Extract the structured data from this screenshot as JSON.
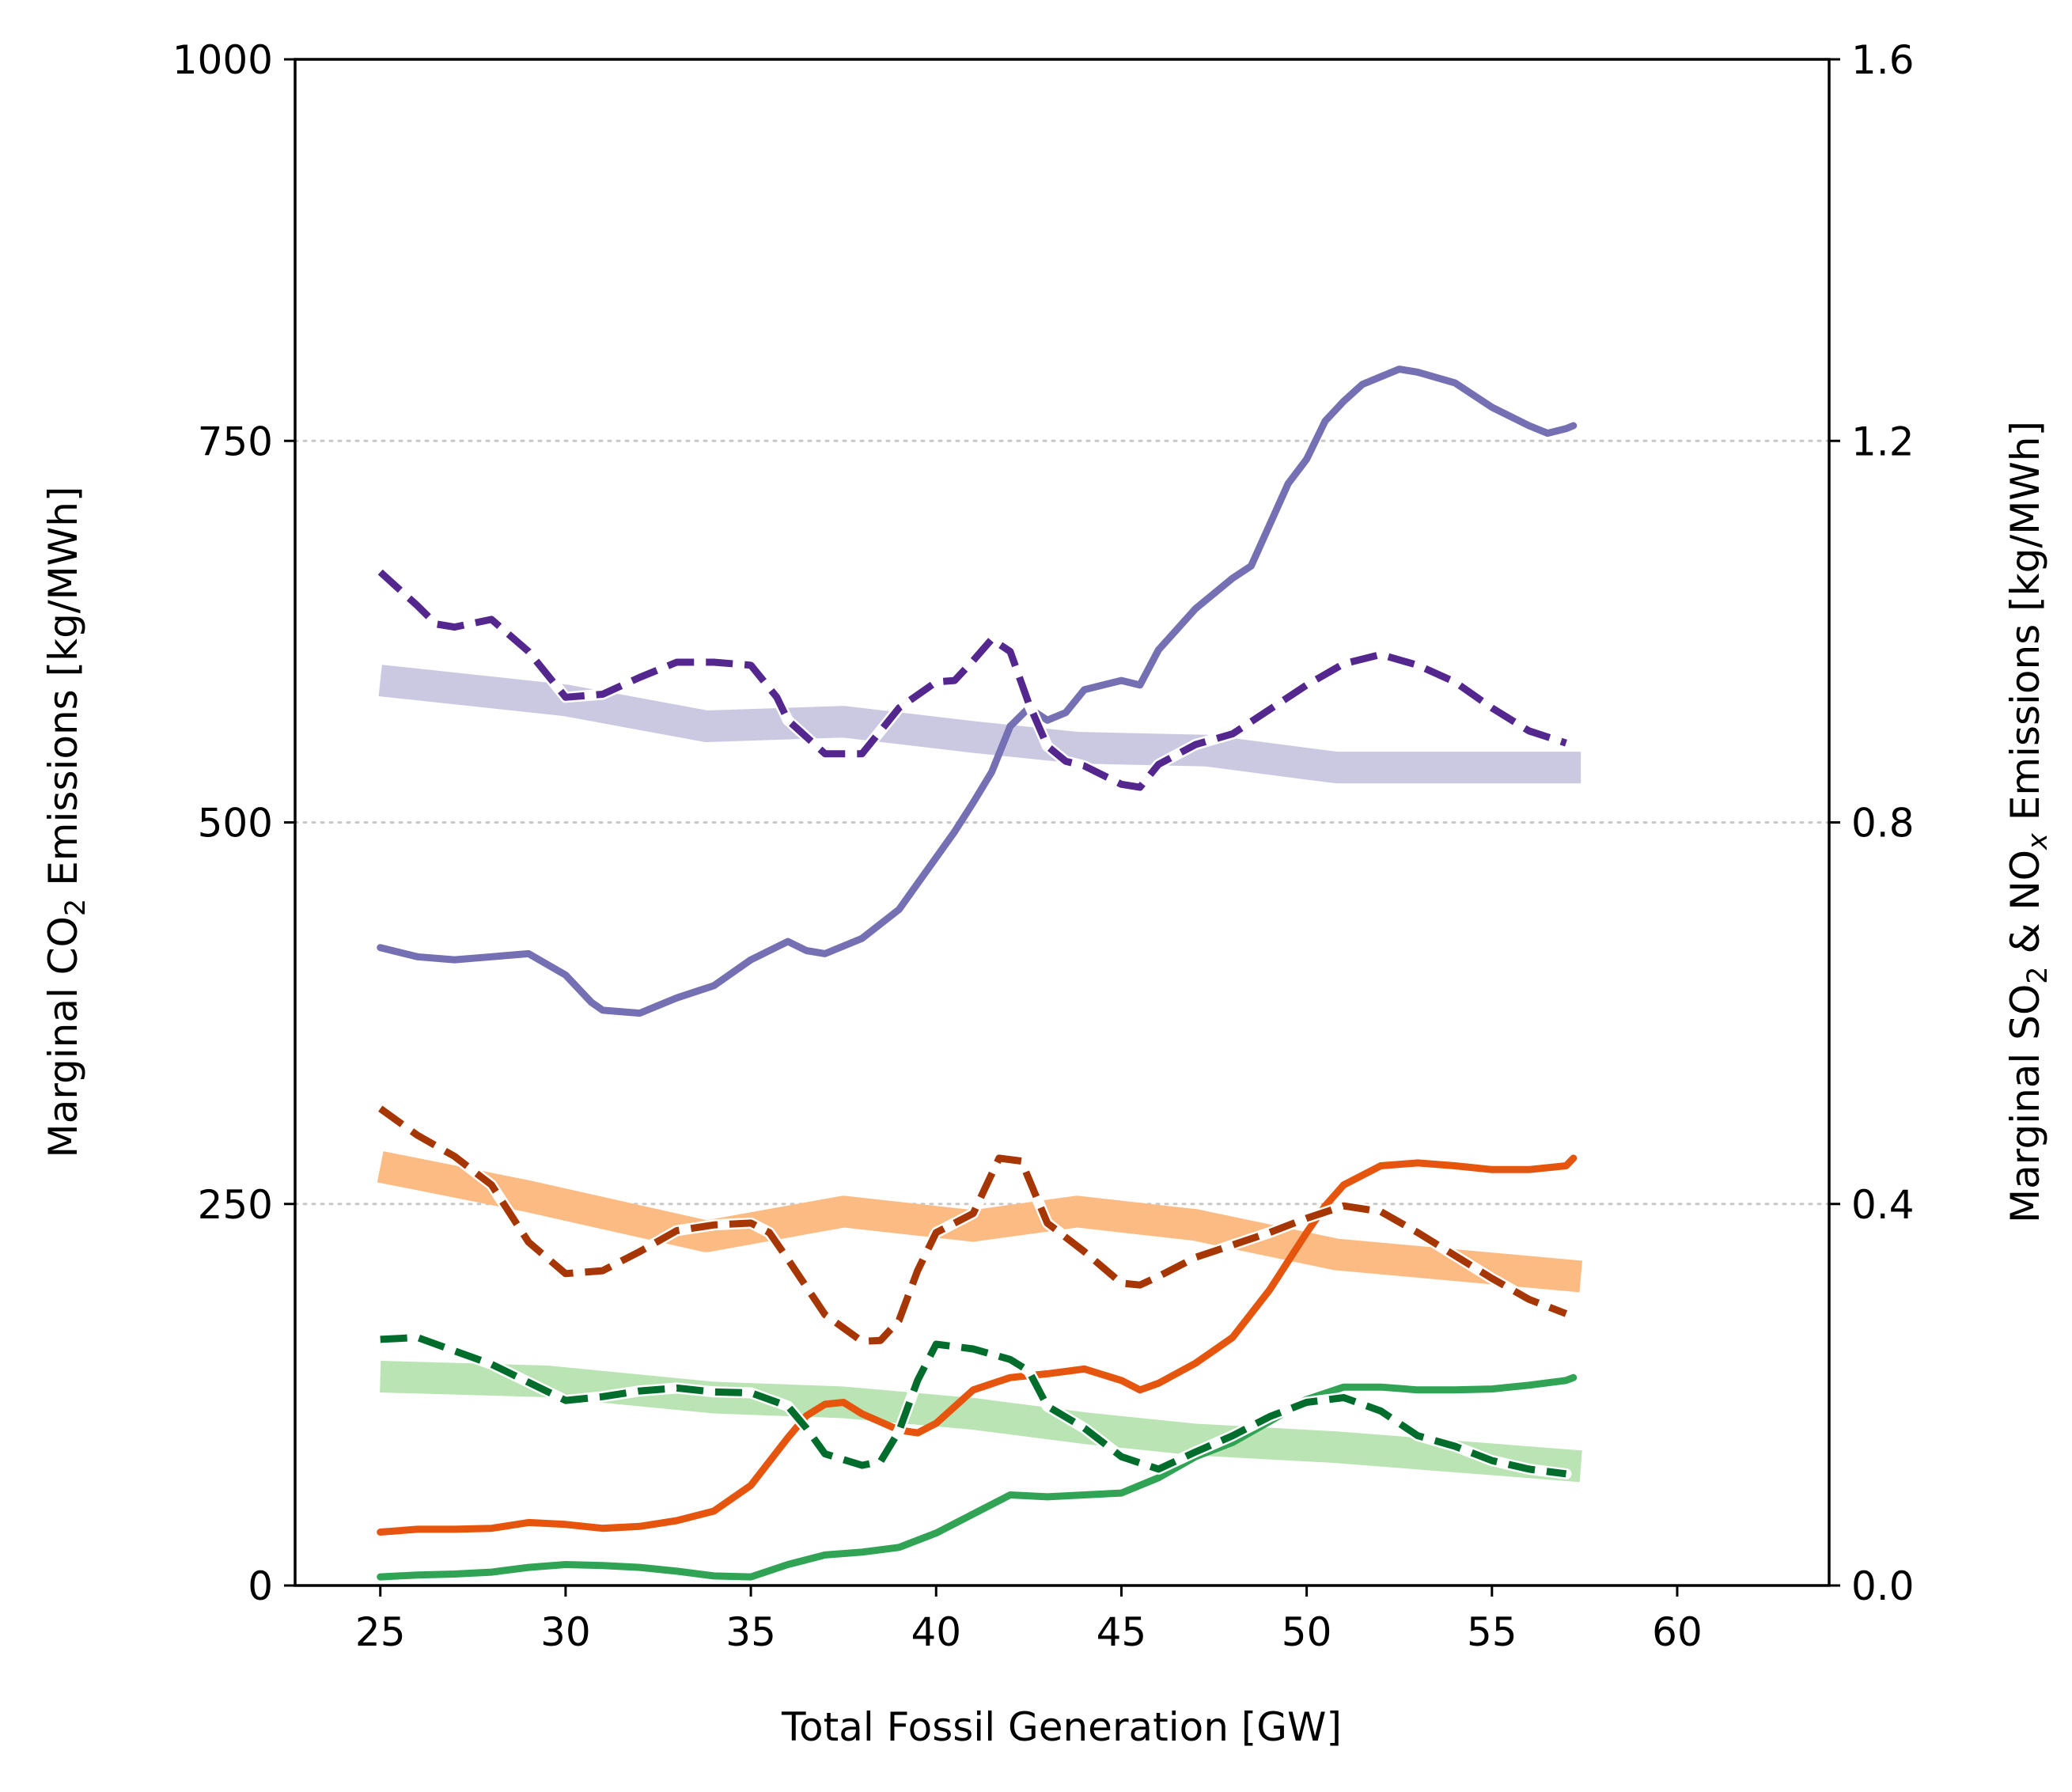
{
  "chart_data": {
    "type": "line",
    "xlabel": "Total Fossil Generation [GW]",
    "ylabel_left": {
      "prefix": "Marginal CO",
      "sub": "2",
      "suffix": " Emissions [kg/MWh]"
    },
    "ylabel_right": {
      "prefix": "Marginal SO",
      "sub1": "2",
      "middle": " & NO",
      "sub2": "x",
      "suffix": " Emissions [kg/MWh]"
    },
    "xlim": [
      22.7,
      64.1
    ],
    "ylim_left": [
      0,
      1000
    ],
    "ylim_right": [
      0,
      1.6
    ],
    "x_ticks": [
      25,
      30,
      35,
      40,
      45,
      50,
      55,
      60
    ],
    "y_ticks_left": [
      0,
      250,
      500,
      750,
      1000
    ],
    "y_ticks_right": [
      "0.0",
      "0.4",
      "0.8",
      "1.2",
      "1.6"
    ],
    "grid": {
      "axis": "y",
      "values": [
        250,
        500,
        750
      ],
      "style": "dotted",
      "color": "#c8c8c8"
    },
    "legend": "none",
    "series": [
      {
        "axis": "left",
        "style": "band",
        "color": "#cbc9e2",
        "points": [
          [
            25,
            593
          ],
          [
            30,
            580
          ],
          [
            33.8,
            563
          ],
          [
            37.5,
            566
          ],
          [
            41,
            556
          ],
          [
            43.8,
            549
          ],
          [
            47.3,
            547
          ],
          [
            50.8,
            536
          ],
          [
            57.4,
            536
          ]
        ]
      },
      {
        "axis": "right",
        "style": "band",
        "color": "#fdbb84",
        "points": [
          [
            25,
            0.439
          ],
          [
            29,
            0.408
          ],
          [
            33.8,
            0.366
          ],
          [
            37.5,
            0.392
          ],
          [
            41,
            0.377
          ],
          [
            43.8,
            0.392
          ],
          [
            47,
            0.378
          ],
          [
            50.8,
            0.347
          ],
          [
            57.4,
            0.324
          ]
        ]
      },
      {
        "axis": "right",
        "style": "band",
        "color": "#bae4b3",
        "points": [
          [
            25,
            0.219
          ],
          [
            29.5,
            0.214
          ],
          [
            34,
            0.197
          ],
          [
            37.5,
            0.192
          ],
          [
            41,
            0.18
          ],
          [
            44,
            0.165
          ],
          [
            47,
            0.153
          ],
          [
            50.8,
            0.145
          ],
          [
            57.4,
            0.125
          ]
        ]
      },
      {
        "axis": "left",
        "style": "solid",
        "color": "#7570b3",
        "points": [
          [
            25,
            418
          ],
          [
            26,
            412
          ],
          [
            27,
            410
          ],
          [
            28,
            412
          ],
          [
            29,
            414
          ],
          [
            30,
            400
          ],
          [
            30.7,
            382
          ],
          [
            31,
            377
          ],
          [
            32,
            375
          ],
          [
            33,
            385
          ],
          [
            34,
            393
          ],
          [
            35,
            410
          ],
          [
            36,
            422
          ],
          [
            36.5,
            416
          ],
          [
            37,
            414
          ],
          [
            38,
            424
          ],
          [
            39,
            443
          ],
          [
            40,
            477
          ],
          [
            40.5,
            494
          ],
          [
            41,
            513
          ],
          [
            41.5,
            533
          ],
          [
            42,
            563
          ],
          [
            42.5,
            575
          ],
          [
            43,
            567
          ],
          [
            43.5,
            572
          ],
          [
            44,
            587
          ],
          [
            45,
            593
          ],
          [
            45.5,
            590
          ],
          [
            46,
            613
          ],
          [
            47,
            640
          ],
          [
            48,
            660
          ],
          [
            48.5,
            668
          ],
          [
            49,
            695
          ],
          [
            49.5,
            722
          ],
          [
            50,
            738
          ],
          [
            50.5,
            763
          ],
          [
            51,
            776
          ],
          [
            51.5,
            787
          ],
          [
            52,
            792
          ],
          [
            52.5,
            797
          ],
          [
            53,
            795
          ],
          [
            54,
            788
          ],
          [
            55,
            772
          ],
          [
            56,
            760
          ],
          [
            56.5,
            755
          ],
          [
            57,
            758
          ],
          [
            57.2,
            760
          ]
        ]
      },
      {
        "axis": "left",
        "style": "dashed",
        "color": "#54278f",
        "points": [
          [
            25,
            664
          ],
          [
            26,
            642
          ],
          [
            26.5,
            630
          ],
          [
            27,
            628
          ],
          [
            28,
            633
          ],
          [
            29,
            612
          ],
          [
            30,
            582
          ],
          [
            31,
            584
          ],
          [
            32,
            595
          ],
          [
            33,
            605
          ],
          [
            34,
            605
          ],
          [
            35,
            603
          ],
          [
            35.7,
            582
          ],
          [
            36,
            567
          ],
          [
            37,
            545
          ],
          [
            38,
            545
          ],
          [
            39,
            575
          ],
          [
            40,
            592
          ],
          [
            40.5,
            593
          ],
          [
            41,
            606
          ],
          [
            41.5,
            620
          ],
          [
            42,
            612
          ],
          [
            42.5,
            578
          ],
          [
            43,
            550
          ],
          [
            43.5,
            540
          ],
          [
            44,
            537
          ],
          [
            45,
            525
          ],
          [
            45.5,
            523
          ],
          [
            46,
            538
          ],
          [
            47,
            551
          ],
          [
            48,
            558
          ],
          [
            49,
            574
          ],
          [
            50,
            590
          ],
          [
            51,
            604
          ],
          [
            52,
            610
          ],
          [
            53,
            603
          ],
          [
            54,
            592
          ],
          [
            55,
            575
          ],
          [
            56,
            560
          ],
          [
            57,
            552
          ]
        ]
      },
      {
        "axis": "right",
        "style": "solid",
        "color": "#e6550d",
        "points": [
          [
            25,
            0.056
          ],
          [
            26,
            0.059
          ],
          [
            27,
            0.059
          ],
          [
            28,
            0.06
          ],
          [
            29,
            0.066
          ],
          [
            30,
            0.064
          ],
          [
            31,
            0.06
          ],
          [
            32,
            0.062
          ],
          [
            33,
            0.068
          ],
          [
            34,
            0.078
          ],
          [
            35,
            0.105
          ],
          [
            36,
            0.155
          ],
          [
            36.5,
            0.178
          ],
          [
            37,
            0.19
          ],
          [
            37.5,
            0.192
          ],
          [
            38,
            0.18
          ],
          [
            39,
            0.163
          ],
          [
            39.5,
            0.16
          ],
          [
            40,
            0.17
          ],
          [
            41,
            0.205
          ],
          [
            42,
            0.218
          ],
          [
            43,
            0.222
          ],
          [
            44,
            0.227
          ],
          [
            45,
            0.215
          ],
          [
            45.5,
            0.205
          ],
          [
            46,
            0.212
          ],
          [
            47,
            0.233
          ],
          [
            48,
            0.26
          ],
          [
            49,
            0.31
          ],
          [
            50,
            0.37
          ],
          [
            50.5,
            0.398
          ],
          [
            51,
            0.42
          ],
          [
            52,
            0.44
          ],
          [
            53,
            0.443
          ],
          [
            54,
            0.44
          ],
          [
            55,
            0.436
          ],
          [
            56,
            0.436
          ],
          [
            57,
            0.44
          ],
          [
            57.2,
            0.448
          ]
        ]
      },
      {
        "axis": "right",
        "style": "dashed",
        "color": "#a63603",
        "points": [
          [
            25,
            0.5
          ],
          [
            26,
            0.472
          ],
          [
            27,
            0.45
          ],
          [
            28,
            0.42
          ],
          [
            29,
            0.36
          ],
          [
            30,
            0.327
          ],
          [
            31,
            0.33
          ],
          [
            32,
            0.35
          ],
          [
            33,
            0.372
          ],
          [
            34,
            0.378
          ],
          [
            35,
            0.38
          ],
          [
            35.5,
            0.37
          ],
          [
            36,
            0.342
          ],
          [
            37,
            0.284
          ],
          [
            38,
            0.256
          ],
          [
            38.5,
            0.257
          ],
          [
            39,
            0.278
          ],
          [
            39.5,
            0.33
          ],
          [
            40,
            0.37
          ],
          [
            41,
            0.39
          ],
          [
            41.7,
            0.448
          ],
          [
            42.3,
            0.445
          ],
          [
            43,
            0.38
          ],
          [
            44,
            0.35
          ],
          [
            45,
            0.317
          ],
          [
            45.5,
            0.315
          ],
          [
            46,
            0.324
          ],
          [
            47,
            0.344
          ],
          [
            48,
            0.357
          ],
          [
            49,
            0.37
          ],
          [
            50,
            0.385
          ],
          [
            51,
            0.398
          ],
          [
            52,
            0.392
          ],
          [
            53,
            0.37
          ],
          [
            54,
            0.346
          ],
          [
            55,
            0.322
          ],
          [
            56,
            0.3
          ],
          [
            57,
            0.285
          ]
        ]
      },
      {
        "axis": "right",
        "style": "solid",
        "color": "#31a354",
        "points": [
          [
            25,
            0.009
          ],
          [
            26,
            0.011
          ],
          [
            27,
            0.012
          ],
          [
            28,
            0.014
          ],
          [
            29,
            0.019
          ],
          [
            30,
            0.022
          ],
          [
            31,
            0.021
          ],
          [
            32,
            0.019
          ],
          [
            33,
            0.015
          ],
          [
            34,
            0.01
          ],
          [
            35,
            0.009
          ],
          [
            36,
            0.022
          ],
          [
            37,
            0.032
          ],
          [
            38,
            0.035
          ],
          [
            39,
            0.04
          ],
          [
            40,
            0.055
          ],
          [
            41,
            0.075
          ],
          [
            42,
            0.095
          ],
          [
            43,
            0.093
          ],
          [
            44,
            0.095
          ],
          [
            45,
            0.097
          ],
          [
            46,
            0.113
          ],
          [
            47,
            0.135
          ],
          [
            48,
            0.15
          ],
          [
            49,
            0.172
          ],
          [
            50,
            0.195
          ],
          [
            51,
            0.208
          ],
          [
            52,
            0.208
          ],
          [
            53,
            0.205
          ],
          [
            54,
            0.205
          ],
          [
            55,
            0.206
          ],
          [
            56,
            0.21
          ],
          [
            57,
            0.215
          ],
          [
            57.2,
            0.218
          ]
        ]
      },
      {
        "axis": "right",
        "style": "dashed",
        "color": "#006d2c",
        "points": [
          [
            25,
            0.258
          ],
          [
            26,
            0.26
          ],
          [
            27,
            0.246
          ],
          [
            28,
            0.232
          ],
          [
            29,
            0.213
          ],
          [
            30,
            0.194
          ],
          [
            31,
            0.198
          ],
          [
            32,
            0.204
          ],
          [
            33,
            0.207
          ],
          [
            34,
            0.203
          ],
          [
            35,
            0.202
          ],
          [
            36,
            0.188
          ],
          [
            36.5,
            0.165
          ],
          [
            37,
            0.138
          ],
          [
            38,
            0.126
          ],
          [
            38.5,
            0.13
          ],
          [
            39,
            0.162
          ],
          [
            39.5,
            0.215
          ],
          [
            40,
            0.253
          ],
          [
            41,
            0.248
          ],
          [
            42,
            0.237
          ],
          [
            42.5,
            0.225
          ],
          [
            43,
            0.188
          ],
          [
            44,
            0.165
          ],
          [
            45,
            0.135
          ],
          [
            46,
            0.122
          ],
          [
            47,
            0.14
          ],
          [
            48,
            0.157
          ],
          [
            49,
            0.177
          ],
          [
            50,
            0.192
          ],
          [
            51,
            0.197
          ],
          [
            52,
            0.183
          ],
          [
            53,
            0.157
          ],
          [
            54,
            0.146
          ],
          [
            55,
            0.131
          ],
          [
            56,
            0.122
          ],
          [
            57,
            0.117
          ]
        ]
      }
    ]
  }
}
